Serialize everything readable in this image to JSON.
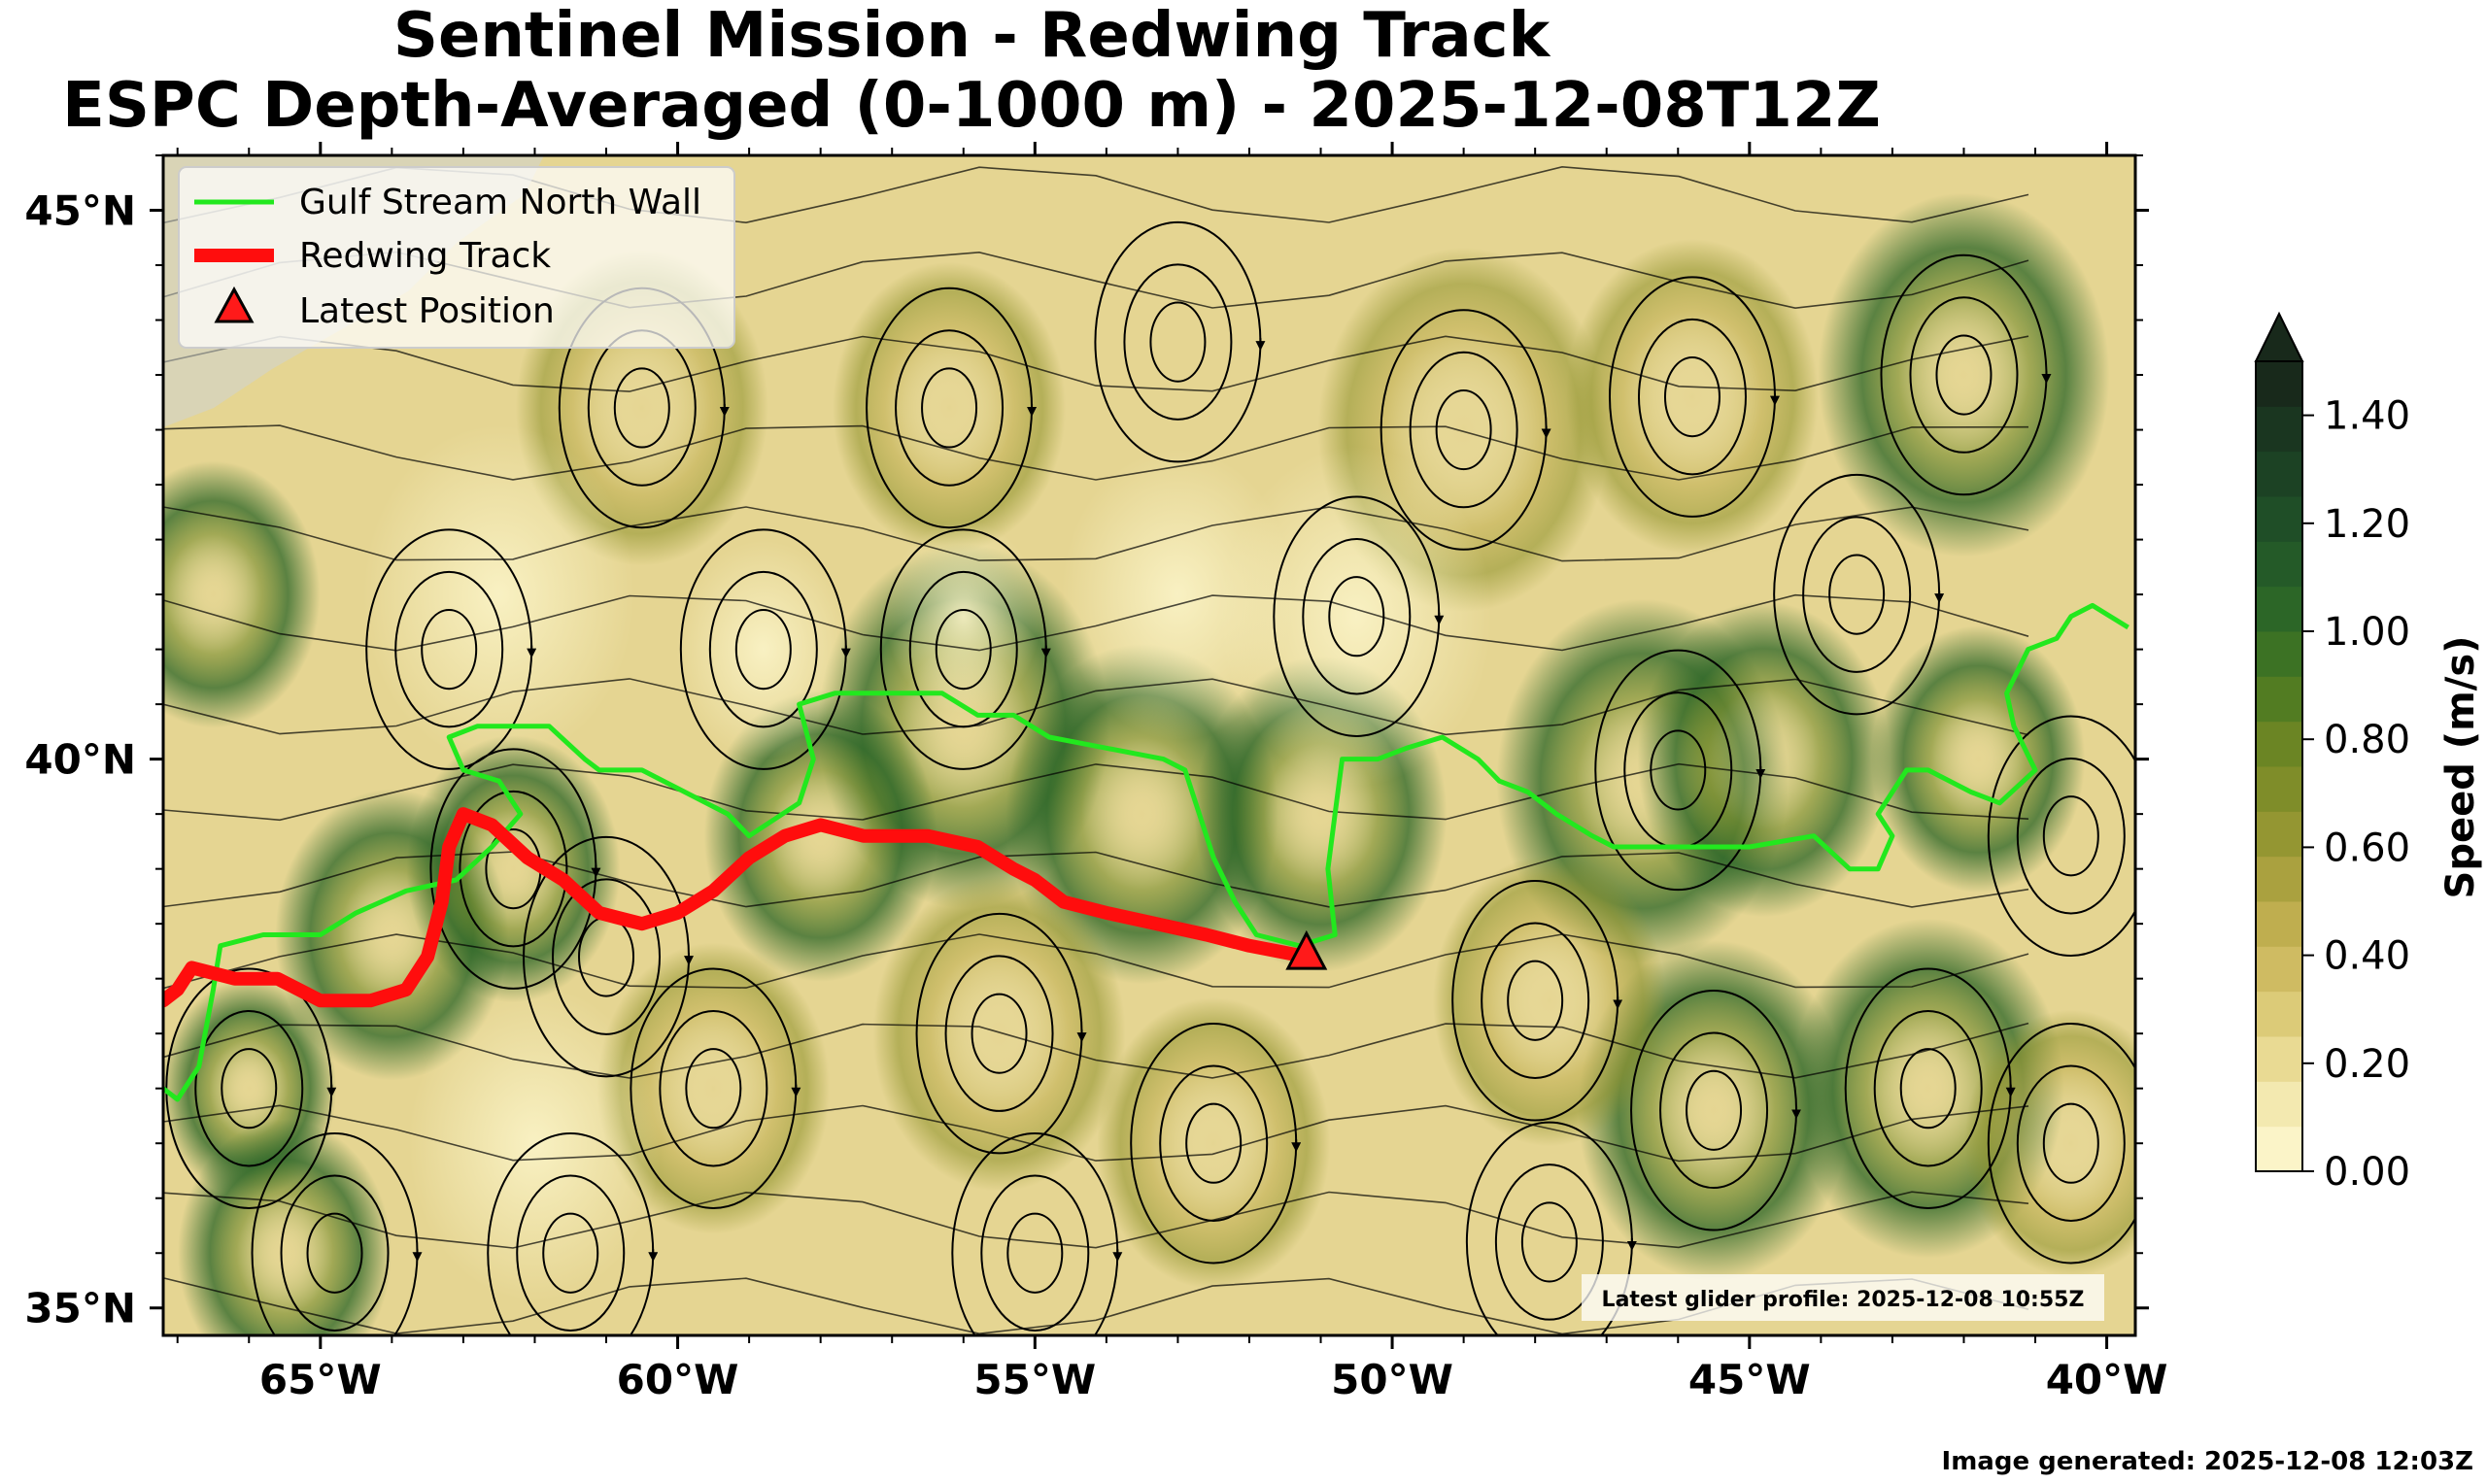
{
  "title": {
    "line1": "Sentinel Mission - Redwing Track",
    "line2": "ESPC Depth-Averaged (0-1000 m) - 2025-12-08T12Z"
  },
  "map": {
    "lon_range": [
      -67.2,
      -39.6
    ],
    "lat_range": [
      34.75,
      45.5
    ],
    "lon_ticks": [
      {
        "value": -65,
        "label": "65°W"
      },
      {
        "value": -60,
        "label": "60°W"
      },
      {
        "value": -55,
        "label": "55°W"
      },
      {
        "value": -50,
        "label": "50°W"
      },
      {
        "value": -45,
        "label": "45°W"
      },
      {
        "value": -40,
        "label": "40°W"
      }
    ],
    "lat_ticks": [
      {
        "value": 45,
        "label": "45°N"
      },
      {
        "value": 40,
        "label": "40°N"
      },
      {
        "value": 35,
        "label": "35°N"
      }
    ],
    "gulf_stream_north_wall": [
      [
        -67.2,
        37.0
      ],
      [
        -67.0,
        36.9
      ],
      [
        -66.7,
        37.2
      ],
      [
        -66.5,
        37.9
      ],
      [
        -66.4,
        38.3
      ],
      [
        -65.8,
        38.4
      ],
      [
        -65.0,
        38.4
      ],
      [
        -64.5,
        38.6
      ],
      [
        -63.8,
        38.8
      ],
      [
        -63.1,
        38.9
      ],
      [
        -62.6,
        39.2
      ],
      [
        -62.2,
        39.5
      ],
      [
        -62.5,
        39.8
      ],
      [
        -63.0,
        39.9
      ],
      [
        -63.2,
        40.2
      ],
      [
        -62.8,
        40.3
      ],
      [
        -62.3,
        40.3
      ],
      [
        -61.8,
        40.3
      ],
      [
        -61.3,
        40.0
      ],
      [
        -61.1,
        39.9
      ],
      [
        -60.5,
        39.9
      ],
      [
        -59.9,
        39.7
      ],
      [
        -59.3,
        39.5
      ],
      [
        -59.0,
        39.3
      ],
      [
        -58.3,
        39.6
      ],
      [
        -58.1,
        40.0
      ],
      [
        -58.3,
        40.5
      ],
      [
        -57.8,
        40.6
      ],
      [
        -57.0,
        40.6
      ],
      [
        -56.3,
        40.6
      ],
      [
        -55.8,
        40.4
      ],
      [
        -55.3,
        40.4
      ],
      [
        -54.8,
        40.2
      ],
      [
        -54.0,
        40.1
      ],
      [
        -53.2,
        40.0
      ],
      [
        -52.9,
        39.9
      ],
      [
        -52.7,
        39.5
      ],
      [
        -52.5,
        39.1
      ],
      [
        -52.2,
        38.7
      ],
      [
        -51.9,
        38.4
      ],
      [
        -51.3,
        38.3
      ],
      [
        -50.8,
        38.4
      ],
      [
        -50.9,
        39.0
      ],
      [
        -50.8,
        39.5
      ],
      [
        -50.7,
        40.0
      ],
      [
        -50.2,
        40.0
      ],
      [
        -49.8,
        40.1
      ],
      [
        -49.3,
        40.2
      ],
      [
        -48.8,
        40.0
      ],
      [
        -48.5,
        39.8
      ],
      [
        -48.1,
        39.7
      ],
      [
        -47.7,
        39.5
      ],
      [
        -47.2,
        39.3
      ],
      [
        -46.9,
        39.2
      ],
      [
        -46.0,
        39.2
      ],
      [
        -45.0,
        39.2
      ],
      [
        -44.1,
        39.3
      ],
      [
        -43.6,
        39.0
      ],
      [
        -43.2,
        39.0
      ],
      [
        -43.0,
        39.3
      ],
      [
        -43.2,
        39.5
      ],
      [
        -42.8,
        39.9
      ],
      [
        -42.5,
        39.9
      ],
      [
        -41.9,
        39.7
      ],
      [
        -41.5,
        39.6
      ],
      [
        -41.0,
        39.9
      ],
      [
        -41.3,
        40.3
      ],
      [
        -41.4,
        40.6
      ],
      [
        -41.1,
        41.0
      ],
      [
        -40.7,
        41.1
      ],
      [
        -40.5,
        41.3
      ],
      [
        -40.2,
        41.4
      ],
      [
        -39.7,
        41.2
      ]
    ],
    "redwing_track": [
      [
        -67.2,
        37.8
      ],
      [
        -67.0,
        37.9
      ],
      [
        -66.8,
        38.1
      ],
      [
        -66.2,
        38.0
      ],
      [
        -65.6,
        38.0
      ],
      [
        -65.0,
        37.8
      ],
      [
        -64.3,
        37.8
      ],
      [
        -63.8,
        37.9
      ],
      [
        -63.5,
        38.2
      ],
      [
        -63.3,
        38.7
      ],
      [
        -63.2,
        39.2
      ],
      [
        -63.0,
        39.5
      ],
      [
        -62.6,
        39.4
      ],
      [
        -62.1,
        39.1
      ],
      [
        -61.6,
        38.9
      ],
      [
        -61.1,
        38.6
      ],
      [
        -60.5,
        38.5
      ],
      [
        -60.0,
        38.6
      ],
      [
        -59.5,
        38.8
      ],
      [
        -59.0,
        39.1
      ],
      [
        -58.5,
        39.3
      ],
      [
        -58.0,
        39.4
      ],
      [
        -57.4,
        39.3
      ],
      [
        -56.5,
        39.3
      ],
      [
        -55.8,
        39.2
      ],
      [
        -55.3,
        39.0
      ],
      [
        -55.0,
        38.9
      ],
      [
        -54.6,
        38.7
      ],
      [
        -54.0,
        38.6
      ],
      [
        -53.3,
        38.5
      ],
      [
        -52.6,
        38.4
      ],
      [
        -52.0,
        38.3
      ],
      [
        -51.2,
        38.2
      ]
    ],
    "latest_position": [
      -51.2,
      38.2
    ]
  },
  "legend": {
    "gulf_stream_label": "Gulf Stream North Wall",
    "track_label": "Redwing Track",
    "position_label": "Latest Position"
  },
  "colorbar": {
    "label": "Speed (m/s)",
    "ticks": [
      "0.00",
      "0.20",
      "0.40",
      "0.60",
      "0.80",
      "1.00",
      "1.20",
      "1.40"
    ],
    "max": 1.5,
    "colors": [
      "#fbf4c8",
      "#f3e9b0",
      "#e9da93",
      "#dccb78",
      "#cfbb62",
      "#bfae4f",
      "#aaa13f",
      "#949632",
      "#7f8d29",
      "#6b8524",
      "#527c22",
      "#3c7224",
      "#2c6627",
      "#245a28",
      "#1f4e27",
      "#1c4224",
      "#1a3620",
      "#18291b"
    ]
  },
  "glider_profile_label": "Latest glider profile: 2025-12-08 10:55Z",
  "generated_label": "Image generated: 2025-12-08 12:03Z",
  "colors": {
    "north_wall": "#22e81e",
    "track": "#ff0d0d",
    "marker": "#ff1a1a"
  }
}
